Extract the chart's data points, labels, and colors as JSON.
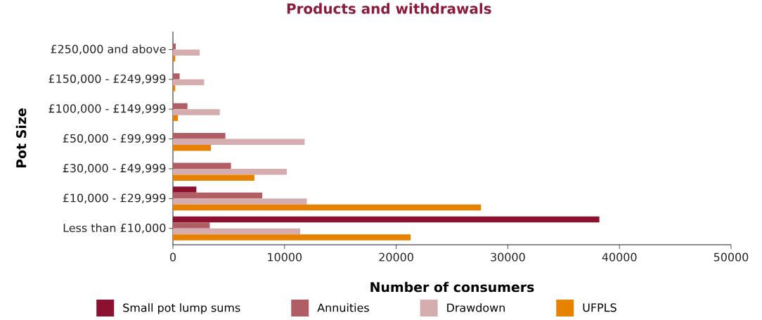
{
  "chart_data": {
    "type": "bar",
    "orientation": "horizontal",
    "title": "Products and withdrawals",
    "xlabel": "Number of consumers",
    "ylabel": "Pot Size",
    "categories": [
      "£250,000 and above",
      "£150,000 - £249,999",
      "£100,000 - £149,999",
      "£50,000 - £99,999",
      "£30,000 - £49,999",
      "£10,000 - £29,999",
      "Less than £10,000"
    ],
    "series": [
      {
        "name": "Small pot lump sums",
        "color": "#8c1030",
        "values": [
          null,
          null,
          null,
          null,
          null,
          2100,
          38200
        ]
      },
      {
        "name": "Annuities",
        "color": "#b05e64",
        "values": [
          250,
          600,
          1300,
          4700,
          5200,
          8000,
          3300
        ]
      },
      {
        "name": "Drawdown",
        "color": "#d6adae",
        "values": [
          2400,
          2800,
          4200,
          11800,
          10200,
          12000,
          11400
        ]
      },
      {
        "name": "UFPLS",
        "color": "#e68200",
        "values": [
          200,
          200,
          450,
          3400,
          7300,
          27600,
          21300
        ]
      }
    ],
    "xlim": [
      0,
      50000
    ],
    "xticks": [
      0,
      10000,
      20000,
      30000,
      40000,
      50000
    ],
    "legend": "bottom"
  }
}
